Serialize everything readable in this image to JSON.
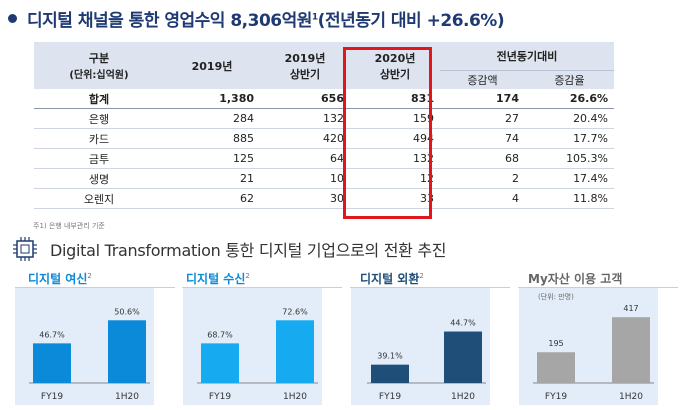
{
  "title": {
    "text": "디지털 채널을 통한 영업수익 8,306억원",
    "sup": "1",
    "suffix": "(전년동기 대비 +26.6%)"
  },
  "table": {
    "header": {
      "col0": "구분",
      "col0_sub": "(단위:십억원)",
      "col1": "2019년",
      "col2a": "2019년",
      "col2b": "상반기",
      "col3a": "2020년",
      "col3b": "상반기",
      "col4": "전년동기대비",
      "col4a": "증감액",
      "col4b": "증감율"
    },
    "rows": [
      {
        "label": "합계",
        "y2019": "1,380",
        "h2019": "656",
        "h2020": "831",
        "diff": "174",
        "rate": "26.6%"
      },
      {
        "label": "은행",
        "y2019": "284",
        "h2019": "132",
        "h2020": "159",
        "diff": "27",
        "rate": "20.4%"
      },
      {
        "label": "카드",
        "y2019": "885",
        "h2019": "420",
        "h2020": "494",
        "diff": "74",
        "rate": "17.7%"
      },
      {
        "label": "금투",
        "y2019": "125",
        "h2019": "64",
        "h2020": "132",
        "diff": "68",
        "rate": "105.3%"
      },
      {
        "label": "생명",
        "y2019": "21",
        "h2019": "10",
        "h2020": "12",
        "diff": "2",
        "rate": "17.4%"
      },
      {
        "label": "오렌지",
        "y2019": "62",
        "h2019": "30",
        "h2020": "33",
        "diff": "4",
        "rate": "11.8%"
      }
    ],
    "note": "주1) 은행 내부관리 기준"
  },
  "subtitle": "Digital Transformation 통한 디지털 기업으로의 전환 추진",
  "charts": [
    {
      "label": "디지털 여신",
      "sup": "2",
      "categories": [
        "FY19",
        "1H20"
      ],
      "values": [
        46.7,
        50.6
      ],
      "labels": [
        "46.7%",
        "50.6%"
      ],
      "color": "#0a8ad8",
      "ymin": 40,
      "ymax": 52
    },
    {
      "label": "디지털 수신",
      "sup": "2",
      "categories": [
        "FY19",
        "1H20"
      ],
      "values": [
        68.7,
        72.6
      ],
      "labels": [
        "68.7%",
        "72.6%"
      ],
      "color": "#16aaf0",
      "ymin": 62,
      "ymax": 74
    },
    {
      "label": "디지털 외환",
      "sup": "2",
      "categories": [
        "FY19",
        "1H20"
      ],
      "values": [
        39.1,
        44.7
      ],
      "labels": [
        "39.1%",
        "44.7%"
      ],
      "color": "#1f4e79",
      "ymin": 36,
      "ymax": 48
    },
    {
      "label": "My자산 이용 고객",
      "sup": "",
      "unit": "(단위: 만명)",
      "categories": [
        "FY19",
        "1H20"
      ],
      "values": [
        195,
        417
      ],
      "labels": [
        "195",
        "417"
      ],
      "color": "#a6a6a6",
      "ymin": 0,
      "ymax": 450
    }
  ],
  "chart_data": [
    {
      "type": "bar",
      "title": "디지털 여신",
      "categories": [
        "FY19",
        "1H20"
      ],
      "values": [
        46.7,
        50.6
      ]
    },
    {
      "type": "bar",
      "title": "디지털 수신",
      "categories": [
        "FY19",
        "1H20"
      ],
      "values": [
        68.7,
        72.6
      ]
    },
    {
      "type": "bar",
      "title": "디지털 외환",
      "categories": [
        "FY19",
        "1H20"
      ],
      "values": [
        39.1,
        44.7
      ]
    },
    {
      "type": "bar",
      "title": "My자산 이용 고객",
      "categories": [
        "FY19",
        "1H20"
      ],
      "values": [
        195,
        417
      ]
    }
  ],
  "icons": {
    "bullet": "circle-bullet-icon",
    "chip": "cpu-chip-icon"
  },
  "colors": {
    "navy": "#1f3a72",
    "highlight": "#e2141c",
    "header_bg": "#dde4ef"
  }
}
